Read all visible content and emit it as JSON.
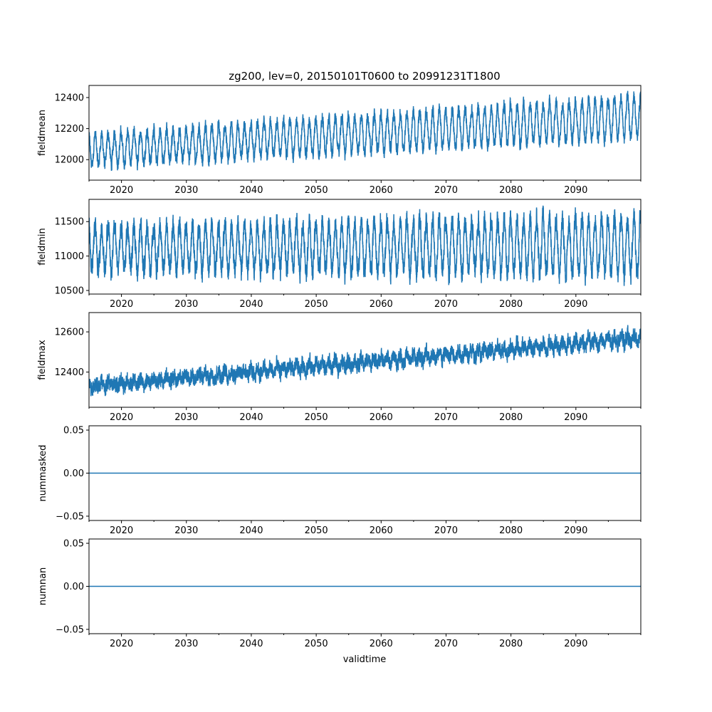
{
  "chart_data": {
    "type": "line",
    "title": "zg200, lev=0, 20150101T0600 to 20991231T1800",
    "xlabel": "validtime",
    "xlim": [
      2015,
      2100
    ],
    "xticks": [
      2020,
      2030,
      2040,
      2050,
      2060,
      2070,
      2080,
      2090
    ],
    "xtick_labels": [
      "2020",
      "2030",
      "2040",
      "2050",
      "2060",
      "2070",
      "2080",
      "2090"
    ],
    "minor_xticks": [
      2015,
      2025,
      2035,
      2045,
      2055,
      2065,
      2075,
      2085,
      2095,
      2100
    ],
    "color": "#1f77b4",
    "panels": [
      {
        "ylabel": "fieldmean",
        "ylim": [
          11868,
          12478
        ],
        "yticks": [
          12000,
          12200,
          12400
        ],
        "ytick_labels": [
          "12000",
          "12200",
          "12400"
        ],
        "series_description": "6-hourly series with annual cycle",
        "trend_start": 12060,
        "trend_end": 12275,
        "seasonal_amplitude": 115,
        "noise": 30
      },
      {
        "ylabel": "fieldmin",
        "ylim": [
          10448,
          11823
        ],
        "yticks": [
          10500,
          11000,
          11500
        ],
        "ytick_labels": [
          "10500",
          "11000",
          "11500"
        ],
        "trend_start": 11110,
        "trend_end": 11150,
        "seasonal_amplitude": 360,
        "noise": 110
      },
      {
        "ylabel": "fieldmax",
        "ylim": [
          12225,
          12696
        ],
        "yticks": [
          12400,
          12600
        ],
        "ytick_labels": [
          "12400",
          "12600"
        ],
        "trend_start": 12330,
        "trend_end": 12570,
        "seasonal_amplitude": 18,
        "noise": 28
      },
      {
        "ylabel": "nummasked",
        "ylim": [
          -0.055,
          0.055
        ],
        "yticks": [
          -0.05,
          0.0,
          0.05
        ],
        "ytick_labels": [
          "−0.05",
          "0.00",
          "0.05"
        ],
        "trend_start": 0,
        "trend_end": 0,
        "seasonal_amplitude": 0,
        "noise": 0
      },
      {
        "ylabel": "numnan",
        "ylim": [
          -0.055,
          0.055
        ],
        "yticks": [
          -0.05,
          0.0,
          0.05
        ],
        "ytick_labels": [
          "−0.05",
          "0.00",
          "0.05"
        ],
        "trend_start": 0,
        "trend_end": 0,
        "seasonal_amplitude": 0,
        "noise": 0
      }
    ]
  }
}
